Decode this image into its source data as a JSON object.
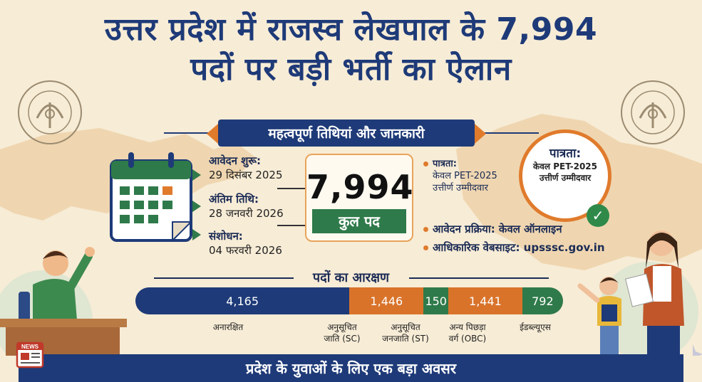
{
  "title": {
    "line1": "उत्तर प्रदेश में राजस्व लेखपाल के 7,994",
    "line2": "पदों पर बड़ी भर्ती का ऐलान"
  },
  "seal_text": "उत्तर प्रदेश सरकार",
  "ribbon": "महत्वपूर्ण तिथियां और जानकारी",
  "dates": [
    {
      "label": "आवेदन शुरू:",
      "value": "29 दिसंबर 2025"
    },
    {
      "label": "अंतिम तिथि:",
      "value": "28 जनवरी 2026"
    },
    {
      "label": "संशोधन:",
      "value": "04 फरवरी 2026"
    }
  ],
  "total": {
    "number": "7,994",
    "label": "कुल पद"
  },
  "info": {
    "eligibility_label": "पात्रता:",
    "eligibility_line1": "केवल PET-2025",
    "eligibility_line2": "उत्तीर्ण उम्मीदवार",
    "process": "आवेदन प्रक्रिया: केवल ऑनलाइन",
    "website": "आधिकारिक वेबसाइट: upsssc.gov.in"
  },
  "eligibility_circle": {
    "title": "पात्रता:",
    "line1": "केवल PET-2025",
    "line2": "उत्तीर्ण उम्मीदवार"
  },
  "reservation": {
    "title": "पदों का आरक्षण",
    "segments": [
      {
        "value": "4,165",
        "label": "अनारक्षित",
        "color": "#1e3a78"
      },
      {
        "value": "1,446",
        "label": "अनुसूचित जाति (SC)",
        "color": "#d9732a"
      },
      {
        "value": "150",
        "label": "अनुसूचित जनजाति (ST)",
        "color": "#2f7a4a"
      },
      {
        "value": "1,441",
        "label": "अन्य पिछड़ा वर्ग (OBC)",
        "color": "#d9732a"
      },
      {
        "value": "792",
        "label": "ईडब्ल्यूएस",
        "color": "#2f7a4a"
      }
    ]
  },
  "footer": "प्रदेश के युवाओं के लिए एक बड़ा अवसर",
  "news_label": "NEWS"
}
